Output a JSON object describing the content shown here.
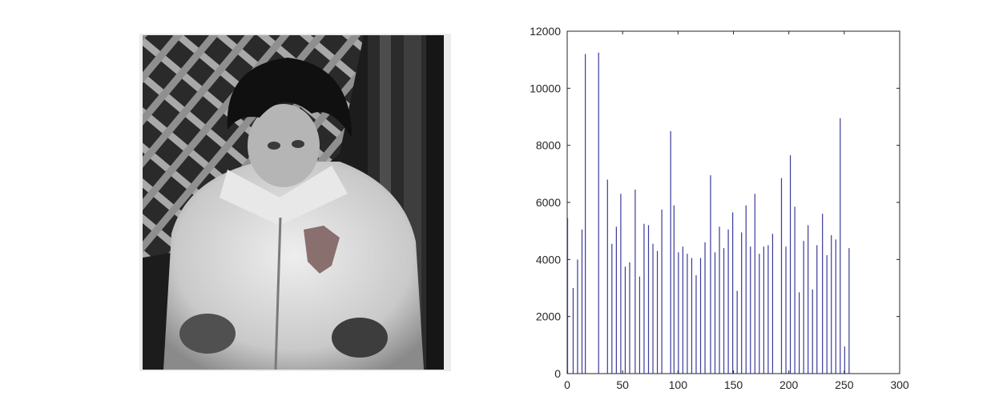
{
  "figure": {
    "background_color": "#ffffff",
    "image_panel": {
      "icon": "grayscale-photo-child-in-jacket"
    }
  },
  "chart_data": {
    "type": "bar",
    "title": "",
    "xlabel": "",
    "ylabel": "",
    "xlim": [
      0,
      300
    ],
    "ylim": [
      0,
      12000
    ],
    "xticks": [
      0,
      50,
      100,
      150,
      200,
      250,
      300
    ],
    "yticks": [
      0,
      2000,
      4000,
      6000,
      8000,
      10000,
      12000
    ],
    "grid": false,
    "bar_color": "#3a3a9a",
    "x": [
      0,
      5,
      9,
      13,
      16,
      28,
      36,
      40,
      44,
      48,
      52,
      56,
      61,
      65,
      69,
      73,
      77,
      81,
      85,
      93,
      96,
      100,
      104,
      108,
      112,
      116,
      120,
      124,
      129,
      133,
      137,
      141,
      145,
      149,
      153,
      157,
      161,
      165,
      169,
      173,
      177,
      181,
      185,
      193,
      197,
      201,
      205,
      209,
      213,
      217,
      221,
      225,
      230,
      234,
      238,
      242,
      246,
      250,
      254
    ],
    "values": [
      5450,
      3000,
      4000,
      5050,
      11200,
      11250,
      6800,
      4550,
      5150,
      6300,
      3750,
      3900,
      6450,
      3400,
      5250,
      5200,
      4550,
      4300,
      5750,
      8500,
      5900,
      4250,
      4450,
      4200,
      4050,
      3450,
      4050,
      4600,
      6950,
      4250,
      5150,
      4400,
      5050,
      5650,
      2900,
      4950,
      5900,
      4450,
      6300,
      4200,
      4450,
      4500,
      4900,
      6850,
      4450,
      7650,
      5850,
      2850,
      4650,
      5200,
      2950,
      4500,
      5600,
      4150,
      4850,
      4700,
      8950,
      950,
      4400
    ]
  }
}
